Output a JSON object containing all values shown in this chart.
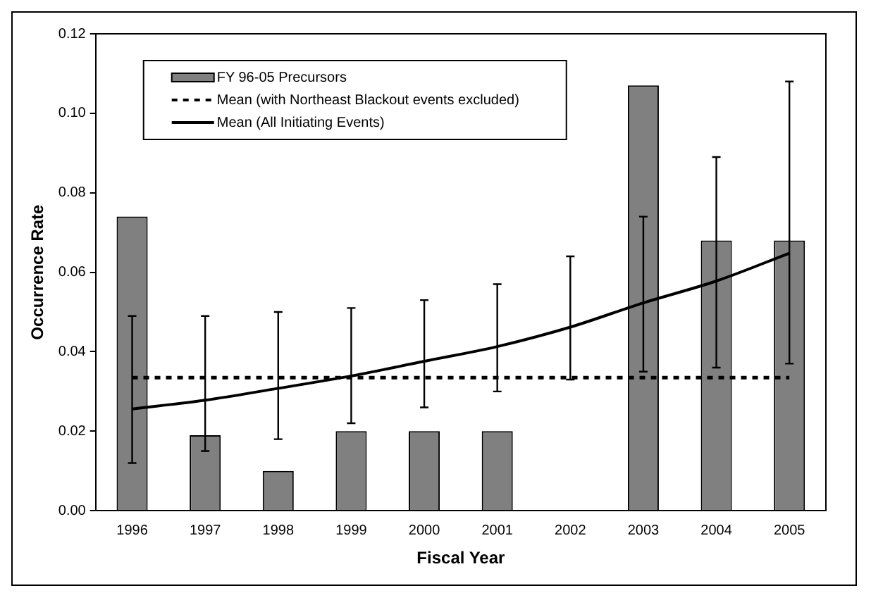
{
  "chart_data": {
    "type": "bar",
    "xlabel": "Fiscal Year",
    "ylabel": "Occurrence Rate",
    "categories": [
      "1996",
      "1997",
      "1998",
      "1999",
      "2000",
      "2001",
      "2002",
      "2003",
      "2004",
      "2005"
    ],
    "series": [
      {
        "name": "FY 96-05 Precursors",
        "color": "#808080",
        "values": [
          0.074,
          0.019,
          0.01,
          0.02,
          0.02,
          0.02,
          0,
          0.107,
          0.068,
          0.068
        ]
      },
      {
        "name": "Mean (with Northeast Blackout events excluded)",
        "type": "line",
        "color": "#000000",
        "line_style": "dotted",
        "marker": "none",
        "values": [
          0.0335,
          0.0335,
          0.0335,
          0.0335,
          0.0335,
          0.0335,
          0.0335,
          0.0335,
          0.0335,
          0.0335
        ]
      },
      {
        "name": "Mean (All Initiating Events)",
        "type": "line",
        "color": "#000000",
        "line_style": "solid",
        "marker": "none",
        "values": [
          0.0256,
          0.0278,
          0.0308,
          0.0339,
          0.0376,
          0.0413,
          0.0462,
          0.0523,
          0.0578,
          0.0648
        ],
        "errors": [
          [
            0.012,
            0.049
          ],
          [
            0.015,
            0.049
          ],
          [
            0.018,
            0.05
          ],
          [
            0.022,
            0.051
          ],
          [
            0.026,
            0.053
          ],
          [
            0.03,
            0.057
          ],
          [
            0.033,
            0.064
          ],
          [
            0.035,
            0.074
          ],
          [
            0.036,
            0.089
          ],
          [
            0.037,
            0.108
          ]
        ]
      }
    ],
    "ylim": [
      0,
      0.12
    ],
    "yticks": [
      {
        "value": 0,
        "label": "0.00"
      },
      {
        "value": 0.02,
        "label": "0.02"
      },
      {
        "value": 0.04,
        "label": "0.04"
      },
      {
        "value": 0.06,
        "label": "0.06"
      },
      {
        "value": 0.08,
        "label": "0.08"
      },
      {
        "value": 0.1,
        "label": "0.10"
      },
      {
        "value": 0.12,
        "label": "0.12"
      }
    ],
    "grid": false,
    "legend": "top left"
  }
}
